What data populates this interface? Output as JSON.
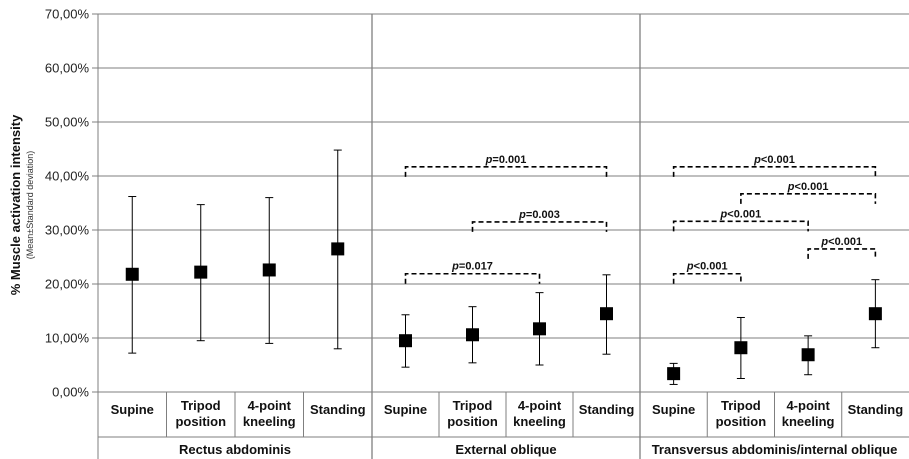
{
  "chart_data": {
    "type": "scatter",
    "ylabel": "% Muscle activation intensity",
    "ylabel_sub": "(Mean±Standard deviation)",
    "ylim": [
      0,
      70
    ],
    "y_ticks": [
      "0,00%",
      "10,00%",
      "20,00%",
      "30,00%",
      "40,00%",
      "50,00%",
      "60,00%",
      "70,00%"
    ],
    "y_tick_values": [
      0,
      10,
      20,
      30,
      40,
      50,
      60,
      70
    ],
    "grid": true,
    "groups": [
      {
        "name": "Rectus abdominis",
        "categories": [
          {
            "label": [
              "Supine"
            ],
            "mean": 21.8,
            "low": 7.2,
            "high": 36.2
          },
          {
            "label": [
              "Tripod",
              "position"
            ],
            "mean": 22.2,
            "low": 9.5,
            "high": 34.7
          },
          {
            "label": [
              "4-point",
              "kneeling"
            ],
            "mean": 22.6,
            "low": 9.0,
            "high": 36.0
          },
          {
            "label": [
              "Standing"
            ],
            "mean": 26.5,
            "low": 8.0,
            "high": 44.8
          }
        ],
        "significance": []
      },
      {
        "name": "External oblique",
        "categories": [
          {
            "label": [
              "Supine"
            ],
            "mean": 9.5,
            "low": 4.6,
            "high": 14.3
          },
          {
            "label": [
              "Tripod",
              "position"
            ],
            "mean": 10.6,
            "low": 5.4,
            "high": 15.8
          },
          {
            "label": [
              "4-point",
              "kneeling"
            ],
            "mean": 11.7,
            "low": 5.0,
            "high": 18.4
          },
          {
            "label": [
              "Standing"
            ],
            "mean": 14.5,
            "low": 7.0,
            "high": 21.7
          }
        ],
        "significance": [
          {
            "from": 0,
            "to": 3,
            "level": 41.7,
            "p": "0.001",
            "op": "="
          },
          {
            "from": 1,
            "to": 3,
            "level": 31.5,
            "p": "0.003",
            "op": "="
          },
          {
            "from": 0,
            "to": 2,
            "level": 21.9,
            "p": "0.017",
            "op": "="
          }
        ]
      },
      {
        "name": "Transversus abdominis/internal oblique",
        "categories": [
          {
            "label": [
              "Supine"
            ],
            "mean": 3.4,
            "low": 1.4,
            "high": 5.3
          },
          {
            "label": [
              "Tripod",
              "position"
            ],
            "mean": 8.2,
            "low": 2.5,
            "high": 13.8
          },
          {
            "label": [
              "4-point",
              "kneeling"
            ],
            "mean": 6.9,
            "low": 3.2,
            "high": 10.4
          },
          {
            "label": [
              "Standing"
            ],
            "mean": 14.5,
            "low": 8.2,
            "high": 20.8
          }
        ],
        "significance": [
          {
            "from": 0,
            "to": 3,
            "level": 41.7,
            "p": "<0.001",
            "op": ""
          },
          {
            "from": 1,
            "to": 3,
            "level": 36.7,
            "p": "<0.001",
            "op": ""
          },
          {
            "from": 0,
            "to": 2,
            "level": 31.6,
            "p": "<0.001",
            "op": ""
          },
          {
            "from": 2,
            "to": 3,
            "level": 26.5,
            "p": "<0.001",
            "op": ""
          },
          {
            "from": 0,
            "to": 1,
            "level": 21.9,
            "p": "<0.001",
            "op": ""
          }
        ]
      }
    ],
    "colors": {
      "marker": "#000000",
      "grid": "#7f7f7f",
      "axis": "#7f7f7f",
      "text": "#111111"
    }
  }
}
